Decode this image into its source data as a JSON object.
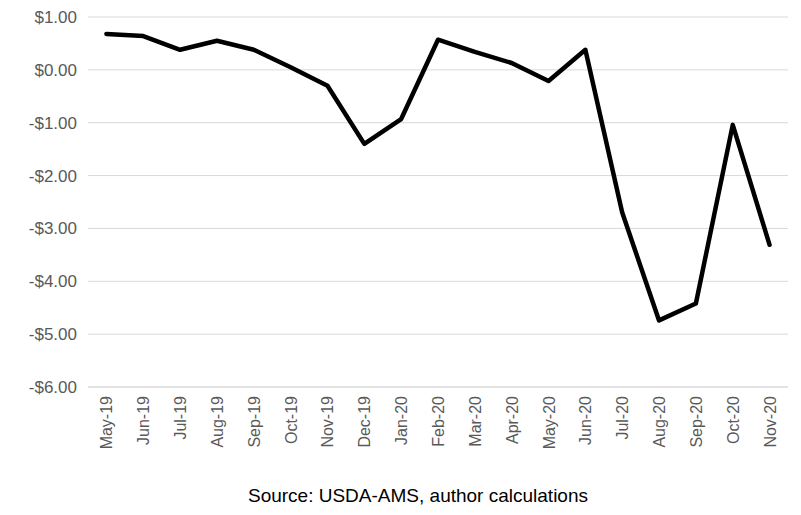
{
  "chart_data": {
    "type": "line",
    "source": "Source: USDA-AMS, author calculations",
    "categories": [
      "May-19",
      "Jun-19",
      "Jul-19",
      "Aug-19",
      "Sep-19",
      "Oct-19",
      "Nov-19",
      "Dec-19",
      "Jan-20",
      "Feb-20",
      "Mar-20",
      "Apr-20",
      "May-20",
      "Jun-20",
      "Jul-20",
      "Aug-20",
      "Sep-20",
      "Oct-20",
      "Nov-20"
    ],
    "values": [
      0.68,
      0.64,
      0.38,
      0.55,
      0.38,
      0.05,
      -0.3,
      -1.4,
      -0.93,
      0.57,
      0.34,
      0.13,
      -0.21,
      0.38,
      -2.7,
      -4.74,
      -4.42,
      -1.04,
      -3.31
    ],
    "color": "#000000",
    "ylim": [
      -6,
      1
    ],
    "yticks": [
      {
        "value": 1,
        "label": "$1.00"
      },
      {
        "value": 0,
        "label": "$0.00"
      },
      {
        "value": -1,
        "label": "-$1.00"
      },
      {
        "value": -2,
        "label": "-$2.00"
      },
      {
        "value": -3,
        "label": "-$3.00"
      },
      {
        "value": -4,
        "label": "-$4.00"
      },
      {
        "value": -5,
        "label": "-$5.00"
      },
      {
        "value": -6,
        "label": "-$6.00"
      }
    ],
    "grid": true
  }
}
